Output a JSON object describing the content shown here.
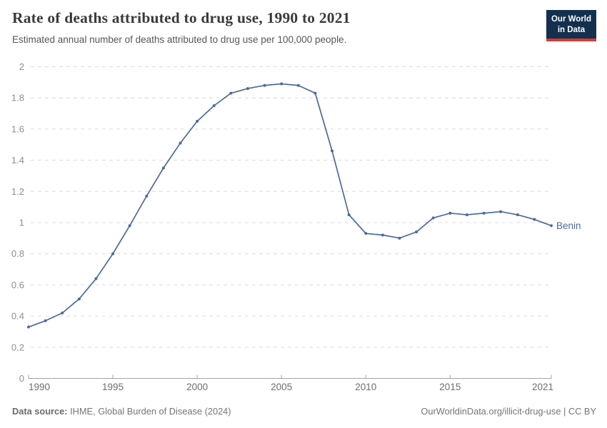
{
  "header": {
    "title": "Rate of deaths attributed to drug use, 1990 to 2021",
    "subtitle": "Estimated annual number of deaths attributed to drug use per 100,000 people.",
    "logo": {
      "line1": "Our World",
      "line2": "in Data",
      "bg_color": "#13304e",
      "accent_color": "#d13d33"
    }
  },
  "chart_data": {
    "type": "line",
    "title": "Rate of deaths attributed to drug use, 1990 to 2021",
    "xlabel": "",
    "ylabel": "Estimated annual number of deaths attributed to drug use per 100,000 people",
    "ylim": [
      0,
      2
    ],
    "grid": "horizontal-dashed",
    "legend_position": "end-of-line",
    "x": [
      1990,
      1991,
      1992,
      1993,
      1994,
      1995,
      1996,
      1997,
      1998,
      1999,
      2000,
      2001,
      2002,
      2003,
      2004,
      2005,
      2006,
      2007,
      2008,
      2009,
      2010,
      2011,
      2012,
      2013,
      2014,
      2015,
      2016,
      2017,
      2018,
      2019,
      2020,
      2021
    ],
    "series": [
      {
        "name": "Benin",
        "color": "#4C6A9C",
        "values": [
          0.33,
          0.37,
          0.42,
          0.51,
          0.64,
          0.8,
          0.98,
          1.17,
          1.35,
          1.51,
          1.65,
          1.75,
          1.83,
          1.86,
          1.88,
          1.89,
          1.88,
          1.83,
          1.46,
          1.05,
          0.93,
          0.92,
          0.9,
          0.94,
          1.03,
          1.06,
          1.05,
          1.06,
          1.07,
          1.05,
          1.02,
          0.98
        ]
      }
    ],
    "yticks": [
      {
        "v": 0,
        "label": "0"
      },
      {
        "v": 0.2,
        "label": "0.2"
      },
      {
        "v": 0.4,
        "label": "0.4"
      },
      {
        "v": 0.6,
        "label": "0.6"
      },
      {
        "v": 0.8,
        "label": "0.8"
      },
      {
        "v": 1,
        "label": "1"
      },
      {
        "v": 1.2,
        "label": "1.2"
      },
      {
        "v": 1.4,
        "label": "1.4"
      },
      {
        "v": 1.6,
        "label": "1.6"
      },
      {
        "v": 1.8,
        "label": "1.8"
      },
      {
        "v": 2,
        "label": "2"
      }
    ],
    "xticks": [
      {
        "v": 1990,
        "label": "1990"
      },
      {
        "v": 1995,
        "label": "1995"
      },
      {
        "v": 2000,
        "label": "2000"
      },
      {
        "v": 2005,
        "label": "2005"
      },
      {
        "v": 2010,
        "label": "2010"
      },
      {
        "v": 2015,
        "label": "2015"
      },
      {
        "v": 2021,
        "label": "2021"
      }
    ]
  },
  "footer": {
    "source_label": "Data source:",
    "source_text": " IHME, Global Burden of Disease (2024)",
    "license_text": "OurWorldinData.org/illicit-drug-use | CC BY"
  }
}
